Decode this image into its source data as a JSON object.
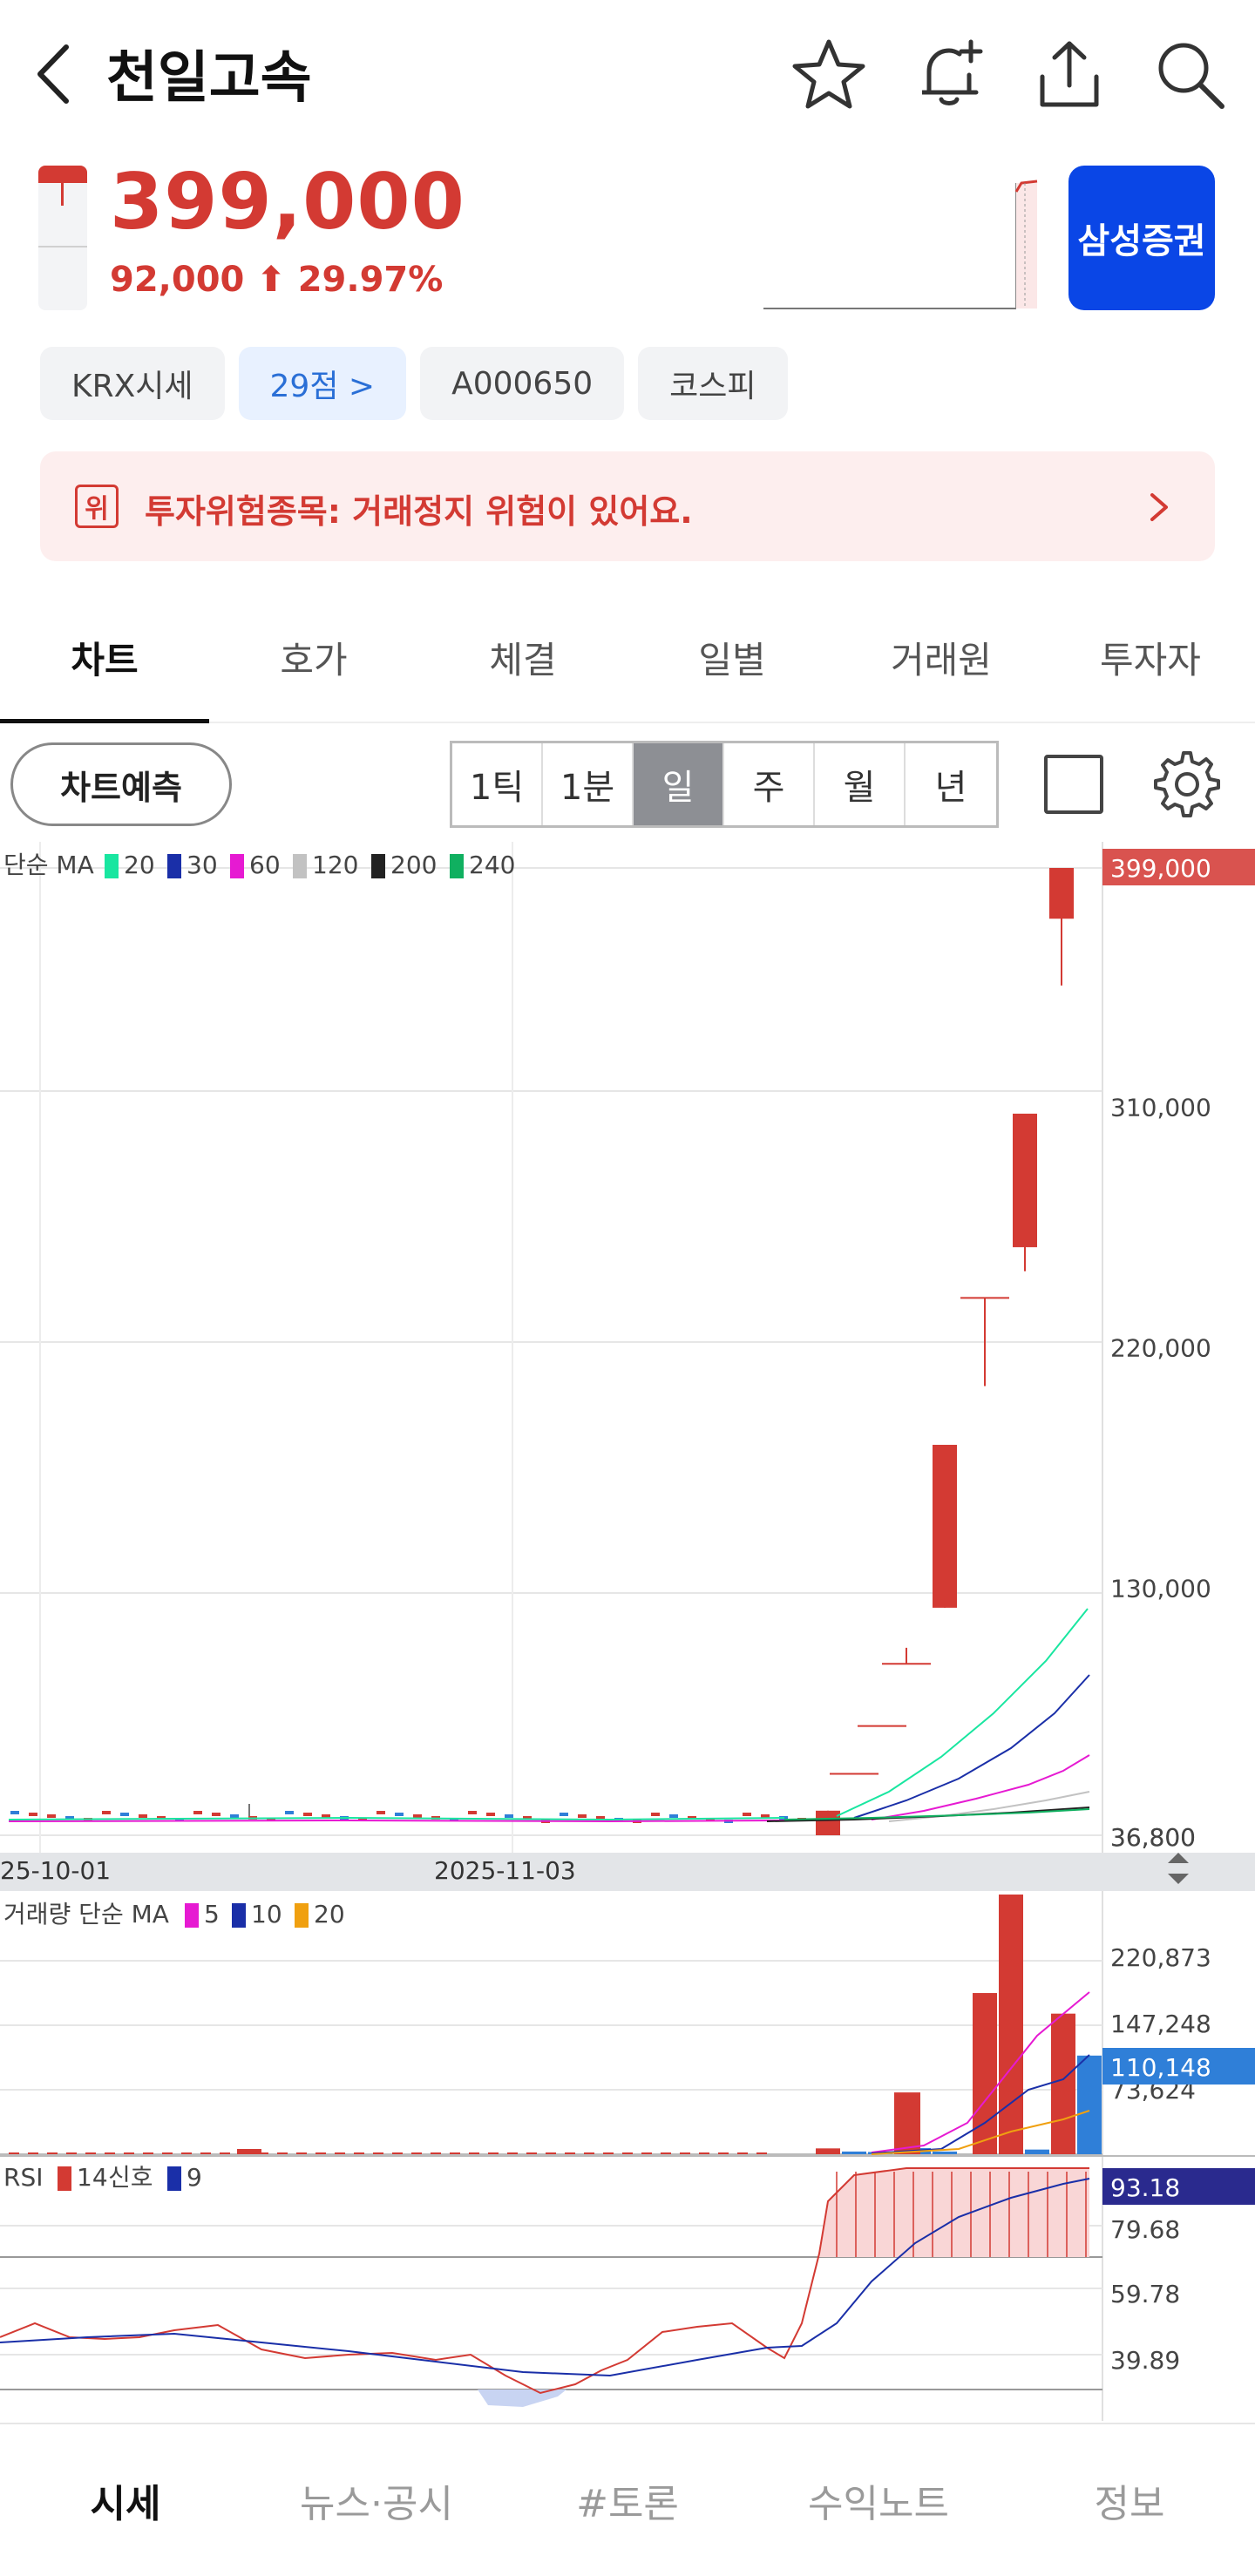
{
  "header": {
    "title": "천일고속"
  },
  "quote": {
    "price": "399,000",
    "change": "92,000 ⬆ 29.97%",
    "broker_button": "삼성증권"
  },
  "chips": [
    "KRX시세",
    "29점 >",
    "A000650",
    "코스피"
  ],
  "warning": {
    "badge": "위",
    "text": "투자위험종목: 거래정지 위험이 있어요."
  },
  "tabs": [
    "차트",
    "호가",
    "체결",
    "일별",
    "거래원",
    "투자자"
  ],
  "chart_tools": {
    "predict": "차트예측",
    "periods": [
      "1틱",
      "1분",
      "일",
      "주",
      "월",
      "년"
    ],
    "active_period": "일"
  },
  "chart_data": [
    {
      "type": "candlestick",
      "legend_label": "단순 MA",
      "ma_legend": [
        {
          "period": "20",
          "color": "#19e6a0"
        },
        {
          "period": "30",
          "color": "#1a2fa8"
        },
        {
          "period": "60",
          "color": "#e61ad2"
        },
        {
          "period": "120",
          "color": "#c2c2c2"
        },
        {
          "period": "200",
          "color": "#222222"
        },
        {
          "period": "240",
          "color": "#10b060"
        }
      ],
      "y_ticks": [
        "399,000",
        "310,000",
        "220,000",
        "130,000",
        "36,800"
      ],
      "ylim": [
        36800,
        399000
      ],
      "x_ticks": [
        "25-10-01",
        "2025-11-03"
      ],
      "recent_candles": [
        {
          "open": 36800,
          "close": 46000,
          "high": 46000,
          "low": 36800
        },
        {
          "open": 59800,
          "close": 59800,
          "high": 59800,
          "low": 59800
        },
        {
          "open": 77700,
          "close": 77700,
          "high": 77700,
          "low": 77700
        },
        {
          "open": 101000,
          "close": 101000,
          "high": 107000,
          "low": 101000
        },
        {
          "open": 122000,
          "close": 183000,
          "high": 183000,
          "low": 122000
        },
        {
          "open": 238000,
          "close": 238000,
          "high": 238000,
          "low": 205000
        },
        {
          "open": 257000,
          "close": 307000,
          "high": 307000,
          "low": 248000
        },
        {
          "open": 380000,
          "close": 399000,
          "high": 399000,
          "low": 355000
        }
      ],
      "current_label": "399,000",
      "current_color": "#d9534f"
    },
    {
      "type": "bar",
      "legend_label": "거래량 단순 MA",
      "ma_legend": [
        {
          "period": "5",
          "color": "#e61ad2"
        },
        {
          "period": "10",
          "color": "#1a2fa8"
        },
        {
          "period": "20",
          "color": "#f0a010"
        }
      ],
      "y_ticks": [
        "220,873",
        "147,248",
        "73,624"
      ],
      "ylim": [
        0,
        290000
      ],
      "recent_values": [
        6500,
        3000,
        2500,
        6800,
        69000,
        3000,
        180000,
        290000,
        5200,
        157000,
        110148
      ],
      "current_label": "110,148",
      "current_color": "#2f7fd8"
    },
    {
      "type": "line",
      "legend_label": "RSI",
      "series": [
        {
          "name": "14",
          "color": "#d33a33"
        },
        {
          "name": "신호",
          "color": "#1a2fa8"
        }
      ],
      "signal_period": "9",
      "y_ticks": [
        "79.68",
        "59.78",
        "39.89"
      ],
      "ylim": [
        20,
        100
      ],
      "current_label": "93.18",
      "current_color": "#2a2a8e"
    }
  ],
  "bottom_nav": [
    "시세",
    "뉴스·공시",
    "#토론",
    "수익노트",
    "정보"
  ]
}
